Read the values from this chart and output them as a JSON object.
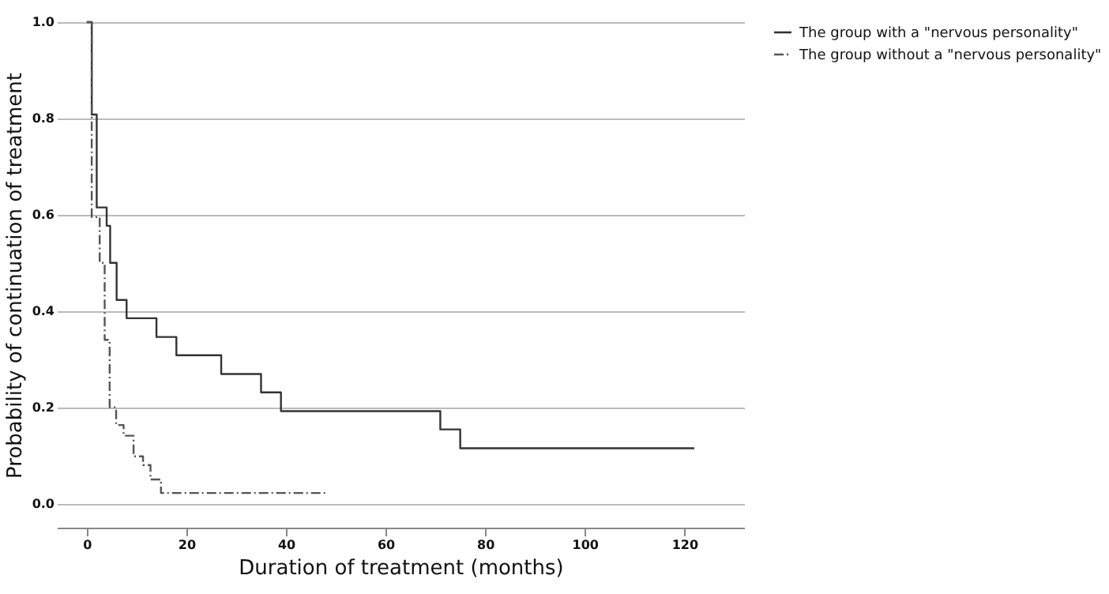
{
  "chart_data": {
    "type": "step",
    "xlabel": "Duration of treatment (months)",
    "ylabel": "Probability of continuation of treatment",
    "xlim": [
      -6,
      132
    ],
    "xticks": [
      0,
      20,
      40,
      60,
      80,
      100,
      120
    ],
    "ylim": [
      -0.05,
      1
    ],
    "yticks": [
      {
        "value": 0,
        "label": "0.0"
      },
      {
        "value": 0.2,
        "label": "0.2"
      },
      {
        "value": 0.4,
        "label": "0.4"
      },
      {
        "value": 0.6,
        "label": "0.6"
      },
      {
        "value": 0.8,
        "label": "0.8"
      },
      {
        "value": 1,
        "label": "1.0"
      }
    ],
    "grid": "y",
    "legend": "top right",
    "series": [
      {
        "name": "The group with a \"nervous personality\"",
        "color": "#333333",
        "line_style": "solid",
        "x": [
          0,
          1,
          2,
          4,
          4.7,
          6,
          8,
          14,
          18,
          27,
          35,
          39,
          71,
          75,
          122
        ],
        "values": [
          1,
          0.808,
          0.615,
          0.577,
          0.5,
          0.423,
          0.385,
          0.346,
          0.308,
          0.269,
          0.231,
          0.192,
          0.154,
          0.115,
          0.115
        ]
      },
      {
        "name": "The group without a \"nervous personality\"",
        "color": "#555555",
        "line_style": "dashed",
        "x": [
          0,
          1,
          2.6,
          3.6,
          4.6,
          5.9,
          7.4,
          9.4,
          11.3,
          12.8,
          14.9,
          48
        ],
        "values": [
          1,
          0.595,
          0.5,
          0.34,
          0.2,
          0.163,
          0.141,
          0.098,
          0.08,
          0.05,
          0.022,
          0.022
        ]
      }
    ]
  }
}
